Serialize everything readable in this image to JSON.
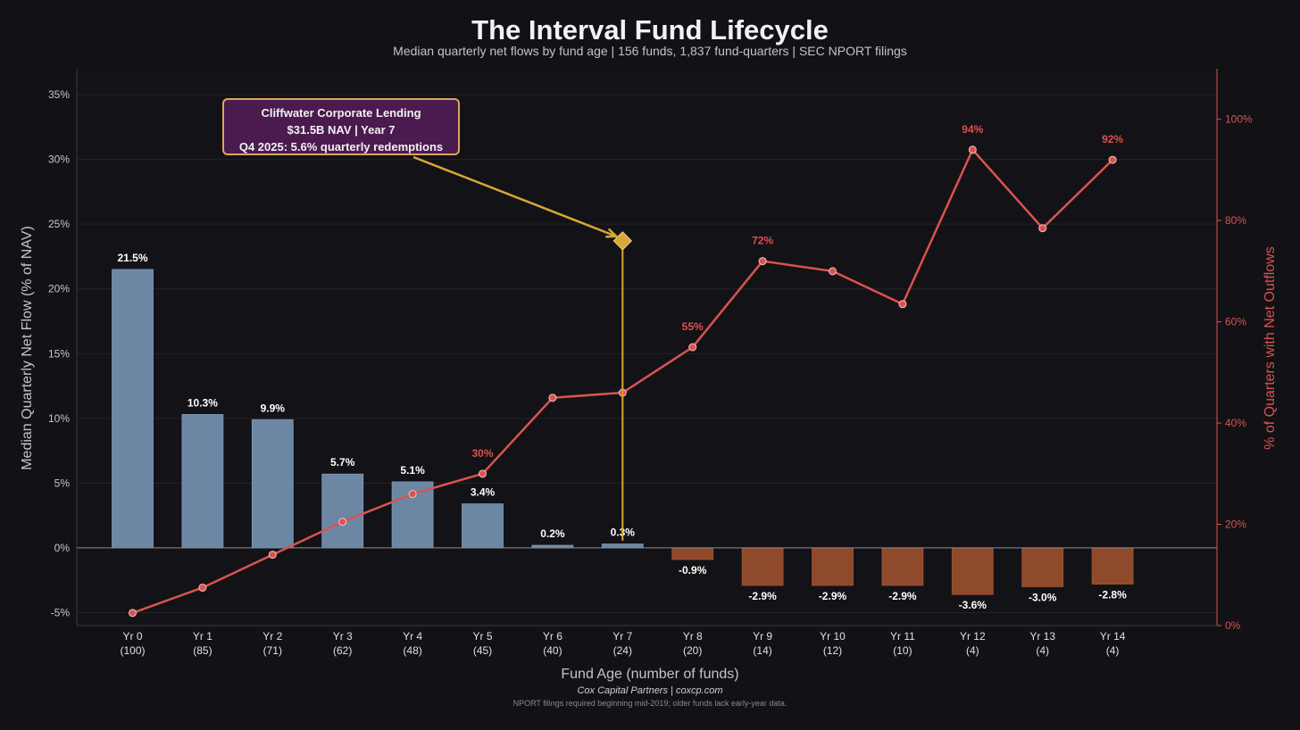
{
  "colors": {
    "bar_positive": "#6b87a3",
    "bar_negative": "#8e4a2b",
    "line": "#d9534f",
    "marker": "#d9a736",
    "annotation_border": "#d9a85a",
    "annotation_bg": "#4b1a4f"
  },
  "chart_data": {
    "type": "bar",
    "title": "The Interval Fund Lifecycle",
    "subtitle": "Median quarterly net flows by fund age  |  156 funds, 1,837 fund-quarters  |  SEC NPORT filings",
    "xlabel": "Fund Age (number of funds)",
    "ylabel": "Median Quarterly Net Flow (% of NAV)",
    "y2label": "% of Quarters with Net Outflows",
    "ylim": [
      -6,
      37
    ],
    "y2lim": [
      0,
      110
    ],
    "yticks": [
      -5,
      0,
      5,
      10,
      15,
      20,
      25,
      30,
      35
    ],
    "yticklabels": [
      "-5%",
      "0%",
      "5%",
      "10%",
      "15%",
      "20%",
      "25%",
      "30%",
      "35%"
    ],
    "y2ticks": [
      0,
      20,
      40,
      60,
      80,
      100
    ],
    "y2ticklabels": [
      "0%",
      "20%",
      "40%",
      "60%",
      "80%",
      "100%"
    ],
    "categories": [
      "Yr 0",
      "Yr 1",
      "Yr 2",
      "Yr 3",
      "Yr 4",
      "Yr 5",
      "Yr 6",
      "Yr 7",
      "Yr 8",
      "Yr 9",
      "Yr 10",
      "Yr 11",
      "Yr 12",
      "Yr 13",
      "Yr 14"
    ],
    "counts": [
      "(100)",
      "(85)",
      "(71)",
      "(62)",
      "(48)",
      "(45)",
      "(40)",
      "(24)",
      "(20)",
      "(14)",
      "(12)",
      "(10)",
      "(4)",
      "(4)",
      "(4)"
    ],
    "series": [
      {
        "name": "Median Quarterly Net Flow",
        "axis": "left",
        "values": [
          21.5,
          10.3,
          9.9,
          5.7,
          5.1,
          3.4,
          0.2,
          0.3,
          -0.9,
          -2.9,
          -2.9,
          -2.9,
          -3.6,
          -3.0,
          -2.8
        ],
        "labels": [
          "21.5%",
          "10.3%",
          "9.9%",
          "5.7%",
          "5.1%",
          "3.4%",
          "0.2%",
          "0.3%",
          "-0.9%",
          "-2.9%",
          "-2.9%",
          "-2.9%",
          "-3.6%",
          "-3.0%",
          "-2.8%"
        ]
      },
      {
        "name": "% of Quarters with Net Outflows",
        "axis": "right",
        "type": "line",
        "values": [
          2.5,
          7.5,
          14,
          20.5,
          26,
          30,
          45,
          46,
          55,
          72,
          70,
          63.5,
          94,
          78.5,
          92
        ],
        "labels": [
          "",
          "",
          "",
          "",
          "",
          "30%",
          "",
          "",
          "55%",
          "72%",
          "",
          "",
          "94%",
          "",
          "92%"
        ]
      }
    ],
    "highlight": {
      "category_index": 7,
      "y2_value": 76
    },
    "annotation": {
      "line1": "Cliffwater Corporate Lending",
      "line2": "$31.5B NAV  |  Year 7",
      "line3": "Q4 2025: 5.6% quarterly redemptions"
    }
  },
  "footer": {
    "credit": "Cox Capital Partners  |  coxcp.com",
    "note": "NPORT filings required beginning mid-2019; older funds lack early-year data."
  }
}
